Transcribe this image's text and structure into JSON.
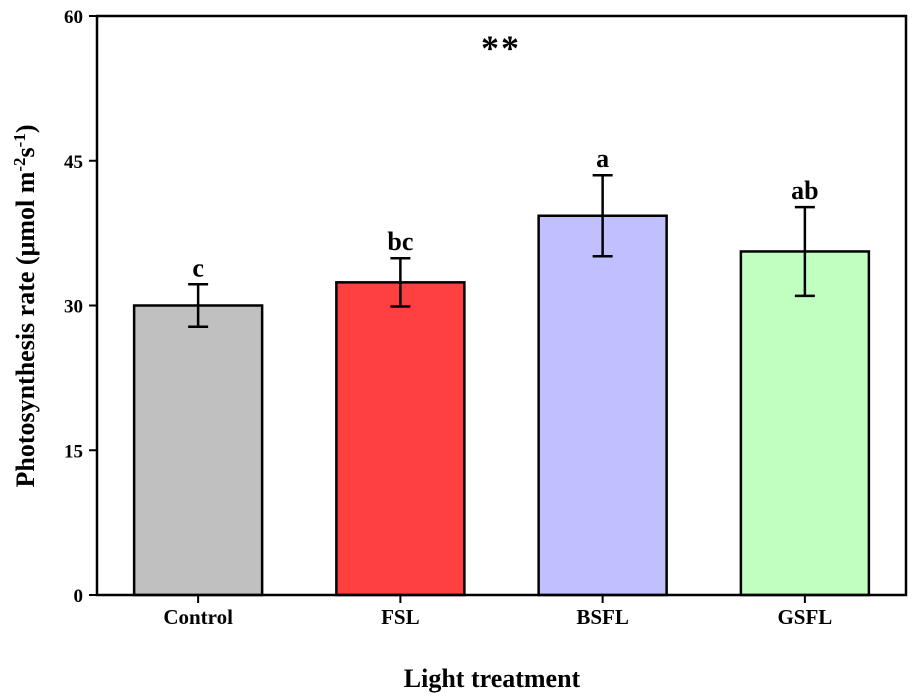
{
  "chart_data": {
    "type": "bar",
    "xlabel": "Light treatment",
    "ylabel_main": "Photosynthesis rate (",
    "ylabel_mu": "μ",
    "ylabel_mol": "mol m",
    "ylabel_sup1": "-2",
    "ylabel_s": "s",
    "ylabel_sup2": "-1",
    "ylabel_close": ")",
    "annotation": "**",
    "ylim": [
      0,
      60
    ],
    "yticks": [
      "0",
      "15",
      "30",
      "45",
      "60"
    ],
    "categories": [
      "Control",
      "FSL",
      "BSFL",
      "GSFL"
    ],
    "values": [
      30.0,
      32.4,
      39.3,
      35.6
    ],
    "errors": [
      2.2,
      2.5,
      4.2,
      4.6
    ],
    "significance": [
      "c",
      "bc",
      "a",
      "ab"
    ],
    "colors": [
      "#c0c0c0",
      "#ff4040",
      "#c0c0ff",
      "#c0ffc0"
    ],
    "grid": false
  }
}
